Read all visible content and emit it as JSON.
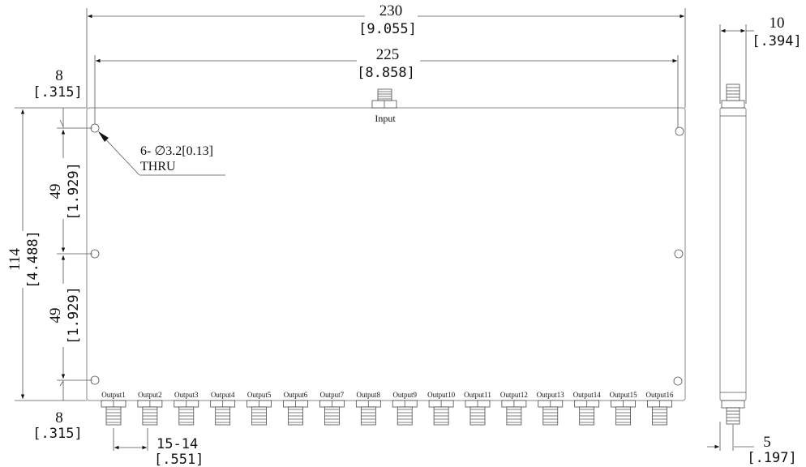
{
  "dimensions": {
    "overall_width": {
      "mm": "230",
      "inch": "[9.055]"
    },
    "hole_spacing_width": {
      "mm": "225",
      "inch": "[8.858]"
    },
    "top_edge_offset": {
      "mm": "8",
      "inch": "[.315]"
    },
    "bottom_edge_offset": {
      "mm": "8",
      "inch": "[.315]"
    },
    "overall_height": {
      "mm": "114",
      "inch": "[4.488]"
    },
    "hole_spacing_upper": {
      "mm": "49",
      "inch": "[1.929]"
    },
    "hole_spacing_lower": {
      "mm": "49",
      "inch": "[1.929]"
    },
    "connector_pitch": {
      "mm": "15-14",
      "inch": "[.551]"
    },
    "side_thickness": {
      "mm": "10",
      "inch": "[.394]"
    },
    "side_connector_offset": {
      "mm": "5",
      "inch": "[.197]"
    }
  },
  "hole_note": {
    "line1": "6- ∅3.2[0.13]",
    "line2": "THRU"
  },
  "input_label": "Input",
  "outputs": [
    "Output1",
    "Output2",
    "Output3",
    "Output4",
    "Output5",
    "Output6",
    "Output7",
    "Output8",
    "Output9",
    "Output10",
    "Output11",
    "Output12",
    "Output13",
    "Output14",
    "Output15",
    "Output16"
  ]
}
